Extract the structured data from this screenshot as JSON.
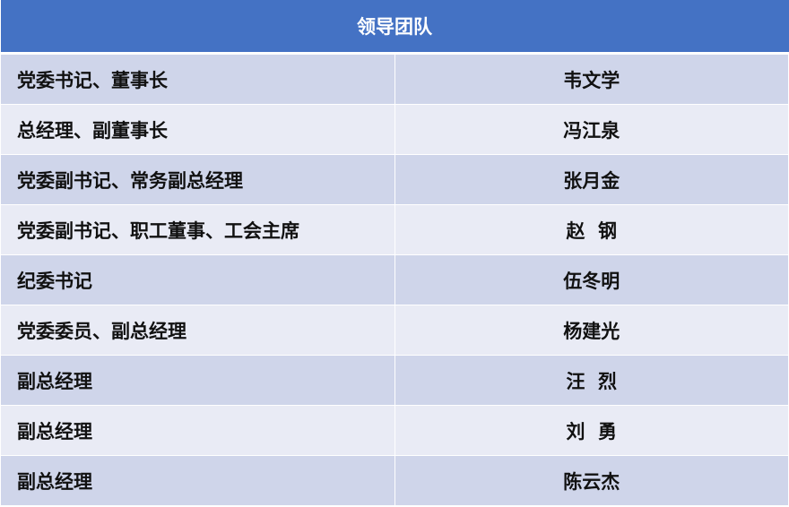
{
  "title": "领导团队",
  "colors": {
    "header": "#4472C4",
    "row_dark": "#CFD5EA",
    "row_light": "#E9EBF5"
  },
  "rows": [
    {
      "position": "党委书记、董事长",
      "name": "韦文学"
    },
    {
      "position": "总经理、副董事长",
      "name": "冯江泉"
    },
    {
      "position": "党委副书记、常务副总经理",
      "name": "张月金"
    },
    {
      "position": "党委副书记、职工董事、工会主席",
      "name": "赵  钢"
    },
    {
      "position": "纪委书记",
      "name": "伍冬明"
    },
    {
      "position": "党委委员、副总经理",
      "name": "杨建光"
    },
    {
      "position": "副总经理",
      "name": "汪  烈"
    },
    {
      "position": "副总经理",
      "name": "刘  勇"
    },
    {
      "position": "副总经理",
      "name": "陈云杰"
    }
  ]
}
